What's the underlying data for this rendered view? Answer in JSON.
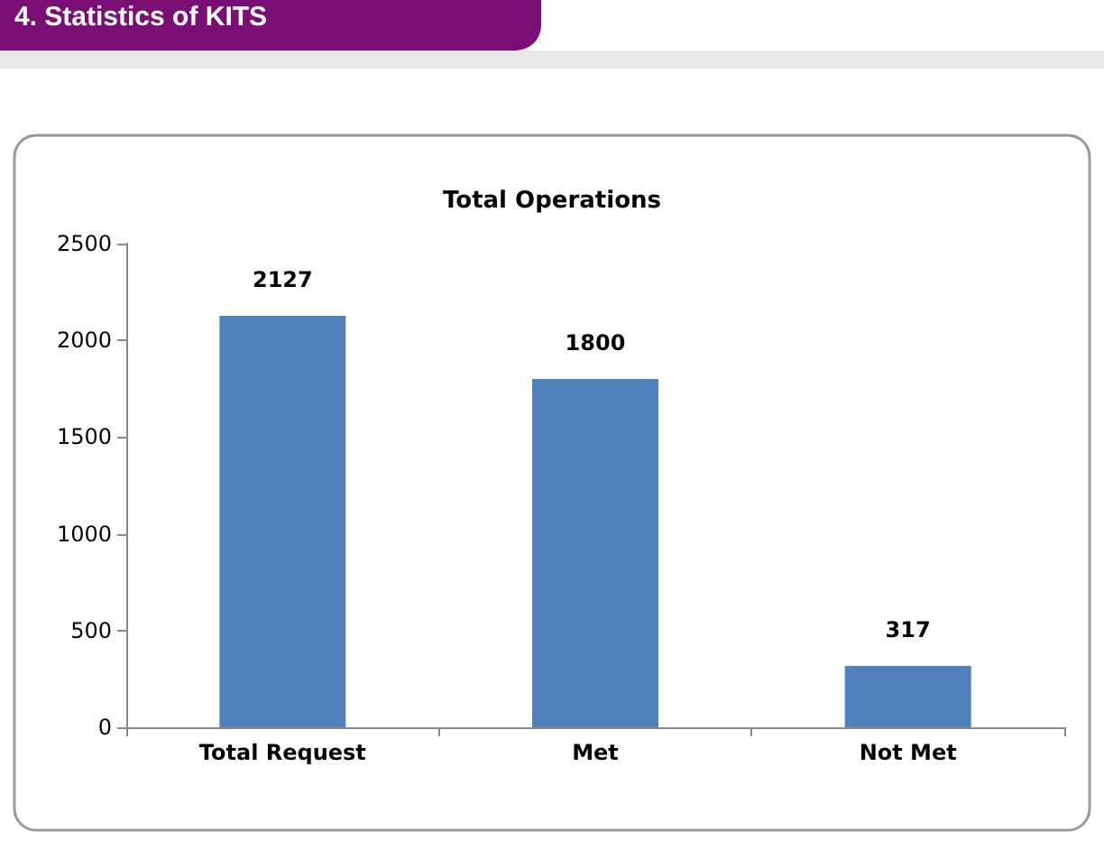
{
  "chart_data": {
    "type": "bar",
    "title": "Total Operations",
    "annotations": [
      "4. Statistics of KITS"
    ],
    "categories": [
      "Total Request",
      "Met",
      "Not Met"
    ],
    "values": [
      2127,
      1800,
      317
    ],
    "color": "#4f81bd",
    "ylim": [
      0,
      2500
    ],
    "yticks": [
      0,
      500,
      1000,
      1500,
      2000,
      2500
    ],
    "grid": false,
    "data_labels": true
  }
}
